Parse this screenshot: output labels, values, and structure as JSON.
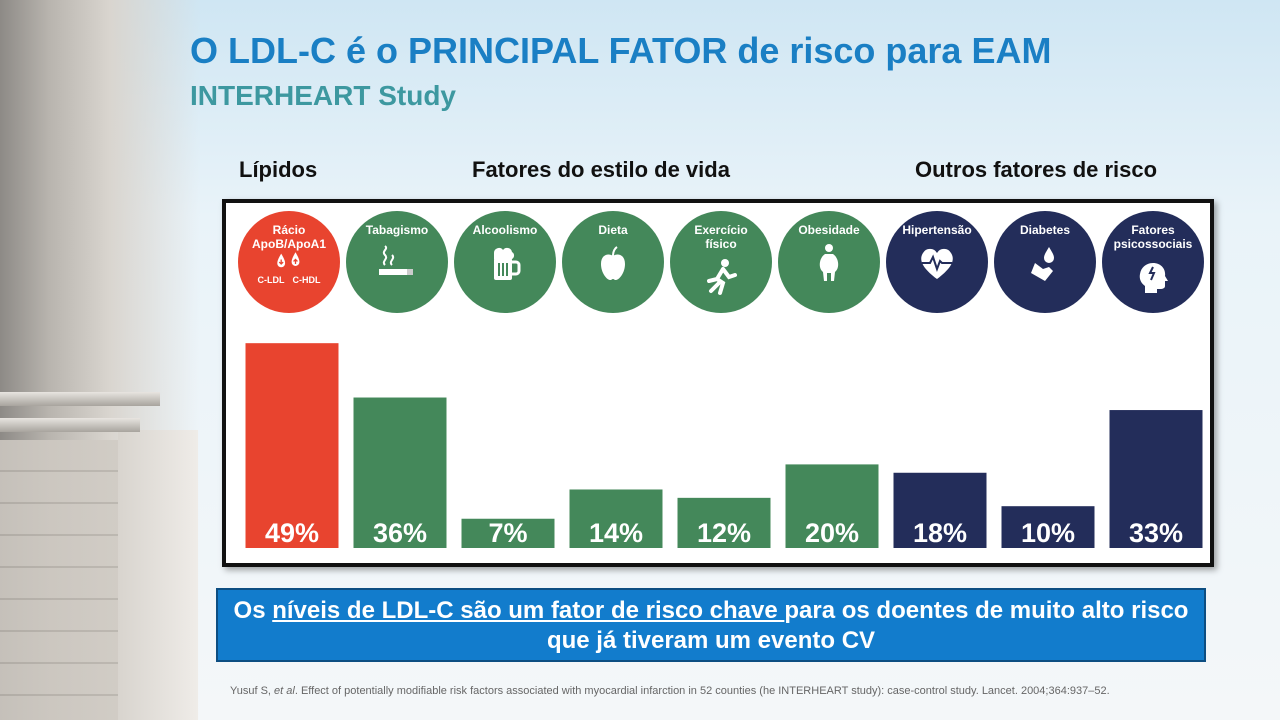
{
  "title": "O LDL-C é o PRINCIPAL FATOR de risco para EAM",
  "subtitle": "INTERHEART Study",
  "groups": {
    "lipids": "Lípidos",
    "lifestyle": "Fatores do estilo de vida",
    "other": "Outros fatores de risco"
  },
  "colors": {
    "lipids": "#e8442f",
    "lifestyle": "#44885a",
    "other": "#232d5a"
  },
  "factors": [
    {
      "label_lines": [
        "Rácio",
        "ApoB/ApoA1"
      ],
      "icon": "drops-icon",
      "icon_labels": [
        "C-LDL",
        "C-HDL"
      ],
      "group": "lipids"
    },
    {
      "label_lines": [
        "Tabagismo"
      ],
      "icon": "cigarette-icon",
      "group": "lifestyle"
    },
    {
      "label_lines": [
        "Alcoolismo"
      ],
      "icon": "beer-icon",
      "group": "lifestyle"
    },
    {
      "label_lines": [
        "Dieta"
      ],
      "icon": "apple-icon",
      "group": "lifestyle"
    },
    {
      "label_lines": [
        "Exercício",
        "físico"
      ],
      "icon": "runner-icon",
      "group": "lifestyle"
    },
    {
      "label_lines": [
        "Obesidade"
      ],
      "icon": "obesity-icon",
      "group": "lifestyle"
    },
    {
      "label_lines": [
        "Hipertensão"
      ],
      "icon": "heart-pulse-icon",
      "group": "other"
    },
    {
      "label_lines": [
        "Diabetes"
      ],
      "icon": "glucose-drop-icon",
      "group": "other"
    },
    {
      "label_lines": [
        "Fatores",
        "psicossociais"
      ],
      "icon": "head-stress-icon",
      "group": "other"
    }
  ],
  "chart_data": {
    "type": "bar",
    "categories": [
      "Rácio ApoB/ApoA1",
      "Tabagismo",
      "Alcoolismo",
      "Dieta",
      "Exercício físico",
      "Obesidade",
      "Hipertensão",
      "Diabetes",
      "Fatores psicossociais"
    ],
    "values": [
      49,
      36,
      7,
      14,
      12,
      20,
      18,
      10,
      33
    ],
    "value_labels": [
      "49%",
      "36%",
      "7%",
      "14%",
      "12%",
      "20%",
      "18%",
      "10%",
      "33%"
    ],
    "unit": "%",
    "ylim": [
      0,
      50
    ],
    "grid": false,
    "legend": "none"
  },
  "callout": {
    "part1": "Os ",
    "underlined": "níveis de LDL-C são um fator de risco chave ",
    "part2": "para os doentes de muito alto risco que já tiveram um evento CV"
  },
  "reference": {
    "author": "Yusuf S, ",
    "etal": "et al",
    "rest": ". Effect of potentially modifiable risk factors associated with myocardial infarction in 52 counties (he INTERHEART study): case-control study. Lancet. 2004;364:937–52."
  }
}
